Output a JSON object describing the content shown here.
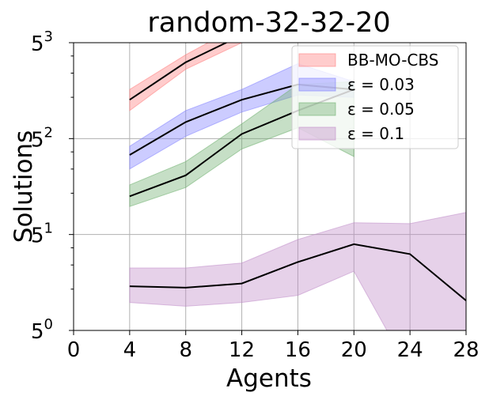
{
  "chart_data": {
    "type": "line",
    "title": "random-32-32-20",
    "xlabel": "Agents",
    "ylabel": "Solutions",
    "xlim": [
      0,
      28
    ],
    "ylim_exponent": [
      0,
      3
    ],
    "y_scale": "log5",
    "grid": true,
    "legend_position": "top-right",
    "x_ticks": [
      "0",
      "4",
      "8",
      "12",
      "16",
      "20",
      "24",
      "28"
    ],
    "y_tick_base": "5",
    "y_tick_exponents": [
      "0",
      "1",
      "2",
      "3"
    ],
    "series": [
      {
        "name": "BB-MO-CBS",
        "color": "#ff8080",
        "x": [
          4,
          8,
          12,
          16
        ],
        "mean": [
          48,
          90,
          142,
          137
        ],
        "lower": [
          40,
          80,
          125,
          131
        ],
        "upper": [
          57,
          102,
          170,
          146
        ]
      },
      {
        "name": "ε = 0.03",
        "color": "#8080ff",
        "x": [
          4,
          8,
          12,
          16,
          20
        ],
        "mean": [
          19,
          33,
          48,
          62,
          57
        ],
        "lower": [
          15,
          26,
          39,
          52,
          50
        ],
        "upper": [
          22,
          40,
          57,
          88,
          65
        ]
      },
      {
        "name": "ε = 0.05",
        "color": "#70b070",
        "x": [
          4,
          8,
          12,
          16,
          20
        ],
        "mean": [
          9.5,
          13.5,
          27,
          40,
          57
        ],
        "lower": [
          8,
          11,
          21,
          30,
          18.5
        ],
        "upper": [
          11.5,
          17,
          32,
          62,
          65
        ]
      },
      {
        "name": "ε = 0.1",
        "color": "#c08cc8",
        "x": [
          4,
          8,
          12,
          16,
          20,
          24,
          28
        ],
        "mean": [
          2.1,
          2.05,
          2.2,
          3.15,
          4.25,
          3.6,
          1.65
        ],
        "lower": [
          1.6,
          1.5,
          1.6,
          1.8,
          2.7,
          0.5,
          0.5
        ],
        "upper": [
          2.85,
          2.85,
          3.1,
          4.6,
          6.1,
          6.0,
          7.25
        ]
      }
    ]
  }
}
